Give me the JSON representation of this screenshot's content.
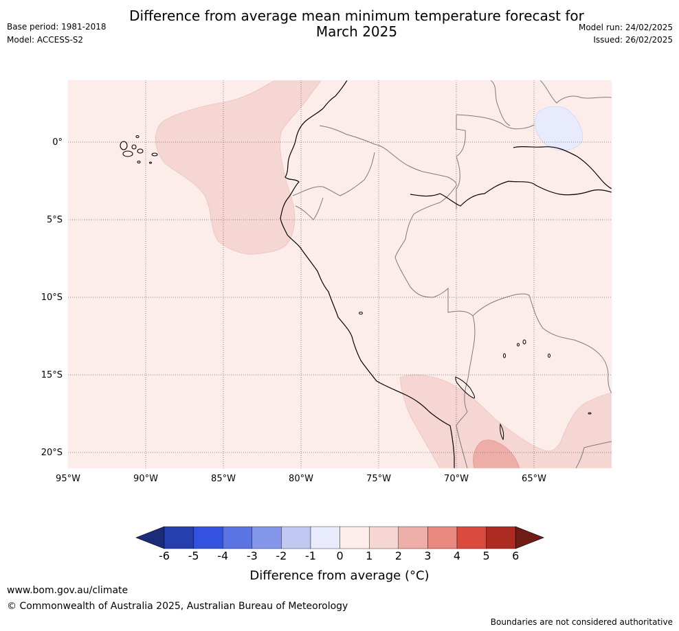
{
  "title": "Difference from average mean minimum temperature forecast for\nMarch 2025",
  "meta": {
    "base_period": "Base period: 1981-2018",
    "model": "Model: ACCESS-S2",
    "model_run": "Model run: 24/02/2025",
    "issued": "Issued: 26/02/2025"
  },
  "map": {
    "background_color": "#fcecea",
    "lat_labels": [
      "0°",
      "5°S",
      "10°S",
      "15°S",
      "20°S"
    ],
    "lon_labels": [
      "95°W",
      "90°W",
      "85°W",
      "80°W",
      "75°W",
      "70°W",
      "65°W"
    ],
    "gridlines": "dotted"
  },
  "colorbar": {
    "ticks": [
      "-6",
      "-5",
      "-4",
      "-3",
      "-2",
      "-1",
      "0",
      "1",
      "2",
      "3",
      "4",
      "5",
      "6"
    ],
    "colors": [
      "#263faf",
      "#3452e0",
      "#5a74e4",
      "#8497ea",
      "#c1c9f3",
      "#e8ebfb",
      "#fcecea",
      "#f5d6d2",
      "#eeaea8",
      "#e8887f",
      "#da4a3f",
      "#ae2b22"
    ],
    "under_color": "#1b2b78",
    "over_color": "#701d17",
    "label": "Difference from average (°C)"
  },
  "footer": {
    "url": "www.bom.gov.au/climate",
    "copyright": "© Commonwealth of Australia 2025, Australian Bureau of Meteorology",
    "note": "Boundaries are not considered authoritative"
  }
}
